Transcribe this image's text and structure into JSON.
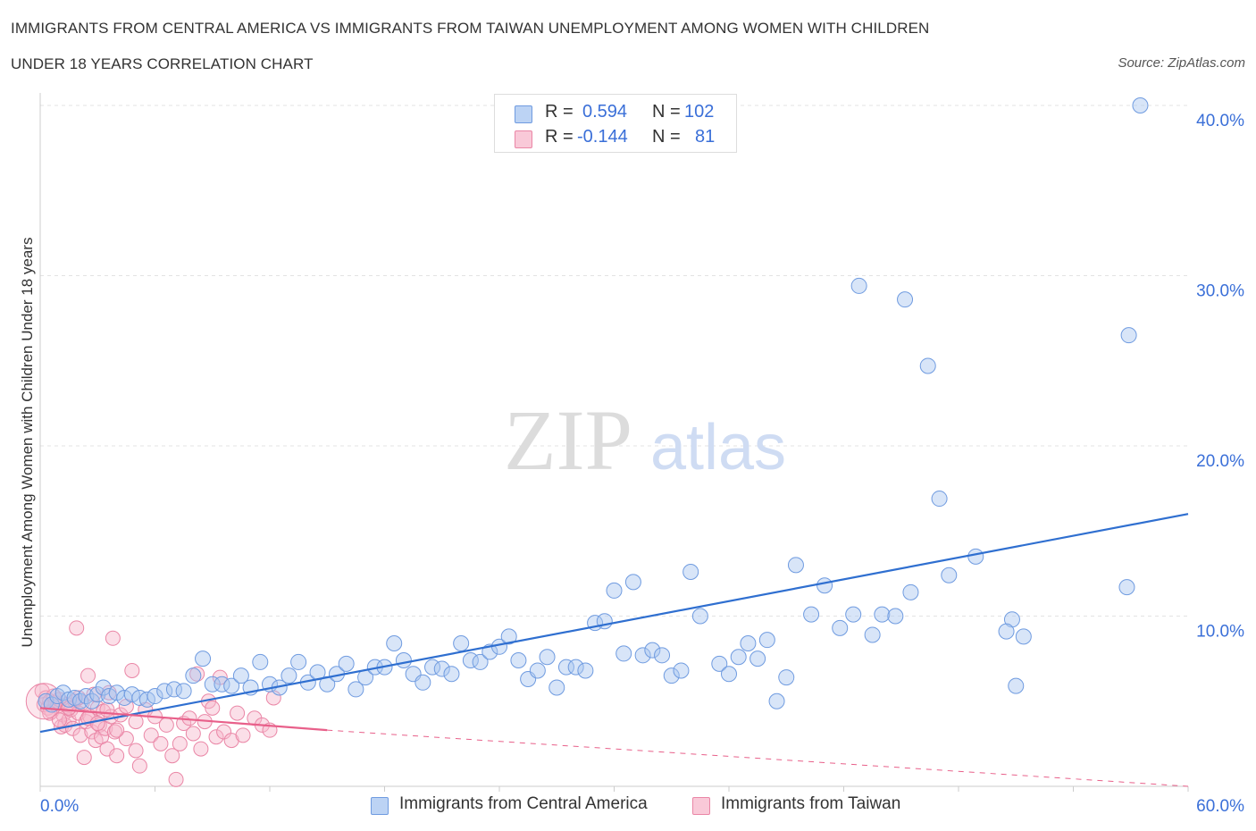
{
  "title_line1": "IMMIGRANTS FROM CENTRAL AMERICA VS IMMIGRANTS FROM TAIWAN UNEMPLOYMENT AMONG WOMEN WITH CHILDREN",
  "title_line2": "UNDER 18 YEARS CORRELATION CHART",
  "source": "Source: ZipAtlas.com",
  "watermark": {
    "zip": "ZIP",
    "atlas": "atlas"
  },
  "legend": {
    "rows": [
      {
        "r_label": "R =",
        "r_value": "0.594",
        "n_label": "N =",
        "n_value": "102"
      },
      {
        "r_label": "R =",
        "r_value": "-0.144",
        "n_label": "N =",
        "n_value": "81"
      }
    ]
  },
  "colors": {
    "blue_fill": "#a9c5ef",
    "blue_stroke": "#6f9be0",
    "blue_line": "#2f6fd0",
    "pink_fill": "#f6b8cb",
    "pink_stroke": "#ea86a6",
    "pink_line": "#e8608a",
    "axis_label": "#3a6fd8",
    "grid": "#e3e3e3"
  },
  "chart_data": {
    "type": "scatter",
    "title": "IMMIGRANTS FROM CENTRAL AMERICA VS IMMIGRANTS FROM TAIWAN UNEMPLOYMENT AMONG WOMEN WITH CHILDREN UNDER 18 YEARS CORRELATION CHART",
    "xlabel": "",
    "ylabel": "Unemployment Among Women with Children Under 18 years",
    "xlim": [
      0,
      60
    ],
    "ylim": [
      0,
      40
    ],
    "x_tick_labels": [
      "0.0%",
      "60.0%"
    ],
    "y_ticks": [
      10,
      20,
      30,
      40
    ],
    "y_tick_labels": [
      "10.0%",
      "20.0%",
      "30.0%",
      "40.0%"
    ],
    "grid": true,
    "legend_position": "top-center",
    "series": [
      {
        "name": "Immigrants from Central America",
        "color": "#a9c5ef",
        "r": 0.594,
        "n": 102,
        "trend": {
          "x": [
            0,
            60
          ],
          "y": [
            3.2,
            16.0
          ]
        },
        "points": [
          [
            0.3,
            5.0
          ],
          [
            0.6,
            4.8
          ],
          [
            0.9,
            5.3
          ],
          [
            1.2,
            5.5
          ],
          [
            1.5,
            5.1
          ],
          [
            1.8,
            5.2
          ],
          [
            2.1,
            5.0
          ],
          [
            2.4,
            5.3
          ],
          [
            2.7,
            5.0
          ],
          [
            3.0,
            5.4
          ],
          [
            3.3,
            5.8
          ],
          [
            3.6,
            5.3
          ],
          [
            4.0,
            5.5
          ],
          [
            4.4,
            5.2
          ],
          [
            4.8,
            5.4
          ],
          [
            5.2,
            5.2
          ],
          [
            5.6,
            5.1
          ],
          [
            6.0,
            5.3
          ],
          [
            6.5,
            5.6
          ],
          [
            7.0,
            5.7
          ],
          [
            7.5,
            5.6
          ],
          [
            8.0,
            6.5
          ],
          [
            8.5,
            7.5
          ],
          [
            9.0,
            6.0
          ],
          [
            9.5,
            6.0
          ],
          [
            10.0,
            5.9
          ],
          [
            10.5,
            6.5
          ],
          [
            11.0,
            5.8
          ],
          [
            11.5,
            7.3
          ],
          [
            12.0,
            6.0
          ],
          [
            12.5,
            5.8
          ],
          [
            13.0,
            6.5
          ],
          [
            13.5,
            7.3
          ],
          [
            14.0,
            6.1
          ],
          [
            14.5,
            6.7
          ],
          [
            15.0,
            6.0
          ],
          [
            15.5,
            6.6
          ],
          [
            16.0,
            7.2
          ],
          [
            16.5,
            5.7
          ],
          [
            17.0,
            6.4
          ],
          [
            17.5,
            7.0
          ],
          [
            18.0,
            7.0
          ],
          [
            18.5,
            8.4
          ],
          [
            19.0,
            7.4
          ],
          [
            19.5,
            6.6
          ],
          [
            20.0,
            6.1
          ],
          [
            20.5,
            7.0
          ],
          [
            21.0,
            6.9
          ],
          [
            21.5,
            6.6
          ],
          [
            22.0,
            8.4
          ],
          [
            22.5,
            7.4
          ],
          [
            23.0,
            7.3
          ],
          [
            23.5,
            7.9
          ],
          [
            24.0,
            8.2
          ],
          [
            24.5,
            8.8
          ],
          [
            25.0,
            7.4
          ],
          [
            25.5,
            6.3
          ],
          [
            26.0,
            6.8
          ],
          [
            26.5,
            7.6
          ],
          [
            27.0,
            5.8
          ],
          [
            27.5,
            7.0
          ],
          [
            28.0,
            7.0
          ],
          [
            28.5,
            6.8
          ],
          [
            29.0,
            9.6
          ],
          [
            29.5,
            9.7
          ],
          [
            30.0,
            11.5
          ],
          [
            30.5,
            7.8
          ],
          [
            31.0,
            12.0
          ],
          [
            31.5,
            7.7
          ],
          [
            32.0,
            8.0
          ],
          [
            32.5,
            7.7
          ],
          [
            33.0,
            6.5
          ],
          [
            33.5,
            6.8
          ],
          [
            34.0,
            12.6
          ],
          [
            34.5,
            10.0
          ],
          [
            35.5,
            7.2
          ],
          [
            36.0,
            6.6
          ],
          [
            36.5,
            7.6
          ],
          [
            37.0,
            8.4
          ],
          [
            37.5,
            7.5
          ],
          [
            38.0,
            8.6
          ],
          [
            38.5,
            5.0
          ],
          [
            39.0,
            6.4
          ],
          [
            39.5,
            13.0
          ],
          [
            40.3,
            10.1
          ],
          [
            41.0,
            11.8
          ],
          [
            41.8,
            9.3
          ],
          [
            42.5,
            10.1
          ],
          [
            42.8,
            29.4
          ],
          [
            43.5,
            8.9
          ],
          [
            44.0,
            10.1
          ],
          [
            44.7,
            10.0
          ],
          [
            45.2,
            28.6
          ],
          [
            45.5,
            11.4
          ],
          [
            46.4,
            24.7
          ],
          [
            47.0,
            16.9
          ],
          [
            47.5,
            12.4
          ],
          [
            48.9,
            13.5
          ],
          [
            50.8,
            9.8
          ],
          [
            50.5,
            9.1
          ],
          [
            51.4,
            8.8
          ],
          [
            51.0,
            5.9
          ],
          [
            56.8,
            11.7
          ],
          [
            56.9,
            26.5
          ],
          [
            57.5,
            40.0
          ]
        ]
      },
      {
        "name": "Immigrants from Taiwan",
        "color": "#f6b8cb",
        "r": -0.144,
        "n": 81,
        "trend": {
          "x": [
            0,
            15
          ],
          "y": [
            4.6,
            3.3
          ],
          "dashed_extension": {
            "x": [
              15,
              60
            ],
            "y": [
              3.3,
              0.0
            ]
          }
        },
        "points": [
          [
            0.1,
            5.6
          ],
          [
            0.2,
            4.8
          ],
          [
            0.3,
            5.2
          ],
          [
            0.4,
            4.6
          ],
          [
            0.5,
            5.0
          ],
          [
            0.6,
            4.4
          ],
          [
            0.7,
            5.3
          ],
          [
            0.8,
            4.9
          ],
          [
            0.9,
            4.7
          ],
          [
            1.0,
            5.1
          ],
          [
            1.1,
            3.5
          ],
          [
            1.2,
            4.2
          ],
          [
            1.3,
            3.6
          ],
          [
            1.4,
            4.8
          ],
          [
            1.5,
            3.9
          ],
          [
            1.6,
            4.5
          ],
          [
            1.7,
            3.4
          ],
          [
            1.8,
            5.0
          ],
          [
            1.9,
            9.3
          ],
          [
            2.0,
            4.3
          ],
          [
            2.1,
            3.0
          ],
          [
            2.2,
            4.9
          ],
          [
            2.3,
            1.7
          ],
          [
            2.4,
            3.8
          ],
          [
            2.5,
            6.5
          ],
          [
            2.6,
            4.1
          ],
          [
            2.7,
            3.2
          ],
          [
            2.8,
            5.4
          ],
          [
            2.9,
            2.7
          ],
          [
            3.0,
            4.6
          ],
          [
            3.1,
            3.6
          ],
          [
            3.2,
            2.9
          ],
          [
            3.3,
            4.4
          ],
          [
            3.4,
            3.4
          ],
          [
            3.5,
            2.2
          ],
          [
            3.6,
            5.5
          ],
          [
            3.7,
            4.1
          ],
          [
            3.8,
            8.7
          ],
          [
            3.9,
            3.2
          ],
          [
            4.0,
            1.8
          ],
          [
            4.2,
            4.2
          ],
          [
            4.5,
            2.8
          ],
          [
            4.8,
            6.8
          ],
          [
            5.0,
            3.8
          ],
          [
            5.2,
            1.2
          ],
          [
            5.5,
            4.5
          ],
          [
            5.8,
            3.0
          ],
          [
            6.0,
            4.1
          ],
          [
            6.3,
            2.5
          ],
          [
            6.6,
            3.6
          ],
          [
            6.9,
            1.8
          ],
          [
            7.1,
            0.4
          ],
          [
            7.3,
            2.5
          ],
          [
            7.5,
            3.7
          ],
          [
            7.8,
            4.0
          ],
          [
            8.0,
            3.1
          ],
          [
            8.2,
            6.6
          ],
          [
            8.4,
            2.2
          ],
          [
            8.6,
            3.8
          ],
          [
            8.8,
            5.0
          ],
          [
            9.0,
            4.6
          ],
          [
            9.2,
            2.9
          ],
          [
            9.4,
            6.4
          ],
          [
            9.6,
            3.2
          ],
          [
            10.0,
            2.7
          ],
          [
            10.3,
            4.3
          ],
          [
            10.6,
            3.0
          ],
          [
            11.2,
            4.0
          ],
          [
            11.6,
            3.6
          ],
          [
            12.0,
            3.3
          ],
          [
            12.2,
            5.2
          ],
          [
            0.5,
            4.3
          ],
          [
            1.0,
            3.9
          ],
          [
            1.5,
            4.6
          ],
          [
            2.0,
            5.2
          ],
          [
            2.5,
            4.0
          ],
          [
            3.0,
            3.7
          ],
          [
            3.5,
            4.5
          ],
          [
            4.0,
            3.3
          ],
          [
            4.5,
            4.7
          ],
          [
            5.0,
            2.1
          ]
        ]
      }
    ]
  }
}
